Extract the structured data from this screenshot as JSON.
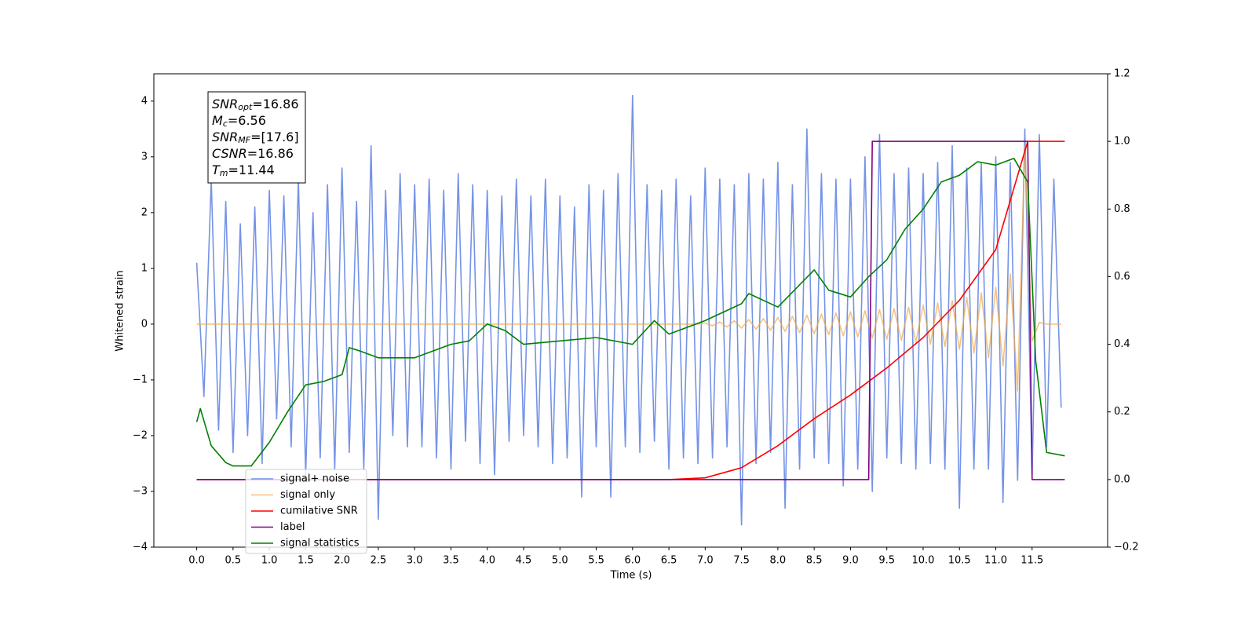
{
  "chart_data": {
    "type": "line",
    "xlabel": "Time (s)",
    "ylabel": "Whitened strain",
    "annotation": [
      {
        "base": "SNR",
        "sub": "opt",
        "rest": "=16.86"
      },
      {
        "base": "M",
        "sub": "c",
        "rest": "=6.56"
      },
      {
        "base": "SNR",
        "sub": "MF",
        "rest": "=[17.6]"
      },
      {
        "base": "CSNR",
        "rest": "=16.86"
      },
      {
        "base": "T",
        "sub": "m",
        "rest": "=11.44"
      }
    ],
    "xlim": [
      -0.59,
      12.54
    ],
    "ylim": [
      -4.0,
      4.49
    ],
    "y2lim": [
      -0.2,
      1.2
    ],
    "xticks": [
      {
        "value": 0,
        "label": "0.0"
      },
      0.5,
      {
        "value": 1,
        "label": "1.0"
      },
      1.5,
      {
        "value": 2,
        "label": "2.0"
      },
      2.5,
      {
        "value": 3,
        "label": "3.0"
      },
      3.5,
      {
        "value": 4,
        "label": "4.0"
      },
      4.5,
      {
        "value": 5,
        "label": "5.0"
      },
      5.5,
      {
        "value": 6,
        "label": "6.0"
      },
      6.5,
      {
        "value": 7,
        "label": "7.0"
      },
      7.5,
      {
        "value": 8,
        "label": "8.0"
      },
      8.5,
      {
        "value": 9,
        "label": "9.0"
      },
      9.5,
      {
        "value": 10,
        "label": "10.0"
      },
      10.5,
      {
        "value": 11,
        "label": "11.0"
      },
      11.5
    ],
    "yticks": [
      {
        "value": -4,
        "label": "−4"
      },
      {
        "value": -3,
        "label": "−3"
      },
      {
        "value": -2,
        "label": "−2"
      },
      {
        "value": -1,
        "label": "−1"
      },
      0,
      1,
      2,
      3,
      4
    ],
    "y2ticks": [
      {
        "value": -0.2,
        "label": "−0.2"
      },
      {
        "value": 0,
        "label": "0.0"
      },
      0.2,
      0.4,
      0.6,
      0.8,
      {
        "value": 1,
        "label": "1.0"
      },
      1.2
    ],
    "x": [
      0,
      0.1,
      0.2,
      0.3,
      0.4,
      0.5,
      0.6,
      0.7,
      0.8,
      0.9,
      1,
      1.1,
      1.2,
      1.3,
      1.4,
      1.5,
      1.6,
      1.7,
      1.8,
      1.9,
      2,
      2.1,
      2.2,
      2.3,
      2.4,
      2.5,
      2.6,
      2.7,
      2.8,
      2.9,
      3,
      3.1,
      3.2,
      3.3,
      3.4,
      3.5,
      3.6,
      3.7,
      3.8,
      3.9,
      4,
      4.1,
      4.2,
      4.3,
      4.4,
      4.5,
      4.6,
      4.7,
      4.8,
      4.9,
      5,
      5.1,
      5.2,
      5.3,
      5.4,
      5.5,
      5.6,
      5.7,
      5.8,
      5.9,
      6,
      6.1,
      6.2,
      6.3,
      6.4,
      6.5,
      6.6,
      6.7,
      6.8,
      6.9,
      7,
      7.1,
      7.2,
      7.3,
      7.4,
      7.5,
      7.6,
      7.7,
      7.8,
      7.9,
      8,
      8.1,
      8.2,
      8.3,
      8.4,
      8.5,
      8.6,
      8.7,
      8.8,
      8.9,
      9,
      9.1,
      9.2,
      9.3,
      9.4,
      9.5,
      9.6,
      9.7,
      9.8,
      9.9,
      10,
      10.1,
      10.2,
      10.3,
      10.4,
      10.5,
      10.6,
      10.7,
      10.8,
      10.9,
      11,
      11.1,
      11.2,
      11.3,
      11.4,
      11.5,
      11.6,
      11.7,
      11.8,
      11.9
    ],
    "series": [
      {
        "name": "signal+ noise",
        "color": "#7593e6",
        "values": [
          1.1,
          -1.3,
          2.6,
          -1.9,
          2.2,
          -2.3,
          1.8,
          -2.0,
          2.1,
          -2.5,
          2.4,
          -1.7,
          2.3,
          -2.2,
          2.6,
          -2.7,
          2.0,
          -2.4,
          2.5,
          -2.6,
          2.8,
          -2.3,
          2.2,
          -2.6,
          3.2,
          -3.5,
          2.4,
          -2.0,
          2.7,
          -2.2,
          2.5,
          -2.2,
          2.6,
          -2.4,
          2.4,
          -2.6,
          2.7,
          -2.1,
          2.5,
          -2.5,
          2.4,
          -2.7,
          2.3,
          -2.1,
          2.6,
          -2.0,
          2.3,
          -2.2,
          2.6,
          -2.5,
          2.3,
          -2.4,
          2.1,
          -3.1,
          2.5,
          -2.2,
          2.4,
          -3.1,
          2.7,
          -2.2,
          4.1,
          -2.3,
          2.5,
          -2.1,
          2.4,
          -2.6,
          2.6,
          -2.4,
          2.3,
          -2.5,
          2.8,
          -2.4,
          2.6,
          -2.2,
          2.5,
          -3.6,
          2.7,
          -2.5,
          2.6,
          -2.3,
          2.9,
          -3.3,
          2.5,
          -2.6,
          3.5,
          -2.4,
          2.7,
          -2.5,
          2.6,
          -2.9,
          2.6,
          -2.6,
          3.0,
          -3.0,
          3.4,
          -2.4,
          2.7,
          -2.5,
          2.8,
          -2.6,
          2.7,
          -2.5,
          2.9,
          -2.6,
          3.2,
          -3.3,
          2.8,
          -2.6,
          2.9,
          -2.6,
          3.0,
          -3.2,
          2.9,
          -2.8,
          3.5,
          -2.7,
          3.4,
          -2.2,
          2.6,
          -1.5
        ]
      },
      {
        "name": "signal only",
        "color": "#f0a848",
        "values": [
          0,
          0,
          0,
          0,
          0,
          0,
          0,
          0,
          0,
          0,
          0,
          0,
          0,
          0,
          0,
          0,
          0,
          0,
          0,
          0,
          0,
          0,
          0,
          0,
          0,
          0,
          0,
          0,
          0,
          0,
          0,
          0,
          0,
          0,
          0,
          0,
          0,
          0,
          0,
          0,
          0,
          0,
          0,
          0,
          0,
          0,
          0,
          0,
          0,
          0,
          0,
          0,
          0,
          0,
          0,
          0,
          0,
          0,
          0,
          0,
          0,
          0,
          0,
          0,
          0,
          0,
          0,
          0,
          0,
          0,
          0.02,
          -0.03,
          0.04,
          -0.05,
          0.06,
          -0.07,
          0.08,
          -0.09,
          0.1,
          -0.11,
          0.12,
          -0.13,
          0.14,
          -0.15,
          0.16,
          -0.17,
          0.18,
          -0.19,
          0.2,
          -0.21,
          0.22,
          -0.23,
          0.24,
          -0.25,
          0.26,
          -0.27,
          0.28,
          -0.29,
          0.3,
          -0.32,
          0.34,
          -0.36,
          0.38,
          -0.4,
          0.42,
          -0.45,
          0.48,
          -0.52,
          0.56,
          -0.6,
          0.66,
          -0.75,
          0.9,
          -1.2,
          3.2,
          -0.3,
          0.03,
          0,
          0,
          0
        ]
      },
      {
        "name": "cumilative SNR",
        "color": "red",
        "axis": "y2",
        "x": [
          0,
          6.5,
          7.0,
          7.5,
          8.0,
          8.5,
          9.0,
          9.5,
          10.0,
          10.5,
          11.0,
          11.44,
          11.95
        ],
        "values": [
          0,
          0,
          0.005,
          0.035,
          0.1,
          0.18,
          0.25,
          0.33,
          0.42,
          0.53,
          0.68,
          1.0,
          1.0
        ]
      },
      {
        "name": "label",
        "color": "purple",
        "axis": "y2",
        "x": [
          0,
          9.25,
          9.3,
          11.44,
          11.5,
          11.95
        ],
        "values": [
          0,
          0,
          1,
          1,
          0,
          0
        ]
      },
      {
        "name": "signal statistics",
        "color": "green",
        "axis": "y2",
        "x": [
          0,
          0.05,
          0.2,
          0.4,
          0.5,
          0.75,
          1.0,
          1.25,
          1.5,
          1.75,
          2.0,
          2.1,
          2.25,
          2.5,
          3.0,
          3.5,
          3.75,
          4.0,
          4.25,
          4.5,
          5.0,
          5.5,
          6.0,
          6.3,
          6.5,
          7.0,
          7.5,
          7.6,
          8.0,
          8.5,
          8.7,
          9.0,
          9.25,
          9.5,
          9.75,
          10.0,
          10.25,
          10.5,
          10.75,
          11.0,
          11.25,
          11.44,
          11.55,
          11.7,
          11.95
        ],
        "values": [
          0.17,
          0.21,
          0.1,
          0.05,
          0.04,
          0.04,
          0.11,
          0.2,
          0.28,
          0.29,
          0.31,
          0.39,
          0.38,
          0.36,
          0.36,
          0.4,
          0.41,
          0.46,
          0.44,
          0.4,
          0.41,
          0.42,
          0.4,
          0.47,
          0.43,
          0.47,
          0.52,
          0.55,
          0.51,
          0.62,
          0.56,
          0.54,
          0.6,
          0.65,
          0.74,
          0.8,
          0.88,
          0.9,
          0.94,
          0.93,
          0.95,
          0.88,
          0.35,
          0.08,
          0.07
        ]
      }
    ]
  }
}
